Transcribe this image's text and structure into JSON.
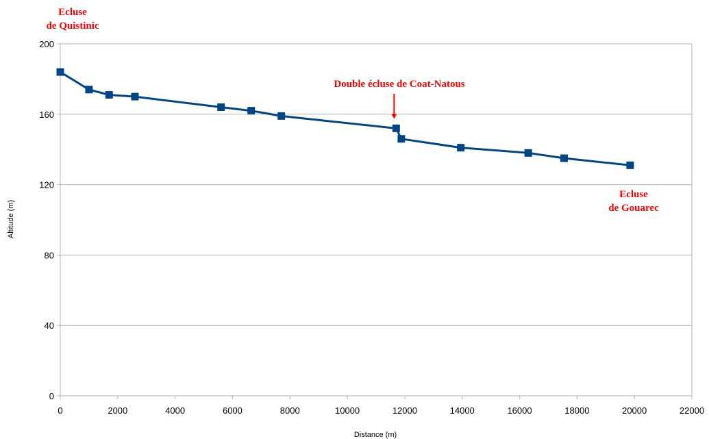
{
  "chart_data": {
    "type": "line",
    "title": "",
    "xlabel": "Distance (m)",
    "ylabel": "Altitude (m)",
    "xlim": [
      0,
      22000
    ],
    "ylim": [
      0,
      200
    ],
    "x_ticks": [
      0,
      2000,
      4000,
      6000,
      8000,
      10000,
      12000,
      14000,
      16000,
      18000,
      20000,
      22000
    ],
    "y_ticks": [
      0,
      40,
      80,
      120,
      160,
      200
    ],
    "grid": "horizontal",
    "legend": "none",
    "series": [
      {
        "color": "#004586",
        "marker": "square",
        "x": [
          0,
          1000,
          1700,
          2600,
          5600,
          6650,
          7700,
          11700,
          11880,
          13950,
          16300,
          17550,
          19850
        ],
        "y": [
          184,
          174,
          171,
          170,
          164,
          162,
          159,
          152,
          146,
          141,
          138,
          135,
          131
        ]
      }
    ],
    "annotations": [
      {
        "lines": [
          "Ecluse",
          "de Quistinic"
        ]
      },
      {
        "lines": [
          "Double écluse de Coat-Natous"
        ],
        "arrow_to": [
          11700,
          152
        ]
      },
      {
        "lines": [
          "Ecluse",
          "de Gouarec"
        ]
      }
    ],
    "annotation_color": "#ff0000"
  }
}
